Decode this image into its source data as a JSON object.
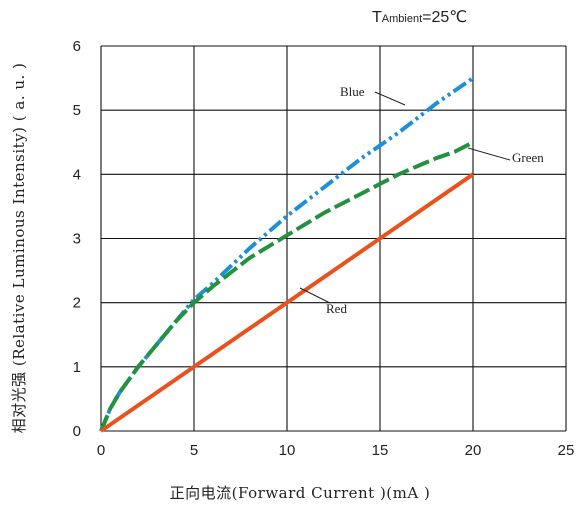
{
  "chart_data": {
    "type": "line",
    "title": "",
    "annotation": {
      "t": "T",
      "sub": "Ambient",
      "rest": "=25℃"
    },
    "xlabel": "正向电流(Forward  Current )(mA )",
    "ylabel": "相对光强 (Relative  Luminous  Intensity) ( a. u. )",
    "xlim": [
      0,
      25
    ],
    "ylim": [
      0,
      6
    ],
    "xticks": [
      "0",
      "5",
      "10",
      "15",
      "20",
      "25"
    ],
    "yticks": [
      "0",
      "1",
      "2",
      "3",
      "4",
      "5",
      "6"
    ],
    "grid": true,
    "series": [
      {
        "name": "Blue",
        "color": "#1e8fd8",
        "dash": "dashdotdot",
        "x": [
          0,
          0.5,
          1,
          2,
          3,
          4,
          5,
          6,
          8,
          10,
          12,
          14,
          16,
          18,
          20
        ],
        "y": [
          0,
          0.35,
          0.6,
          1.0,
          1.35,
          1.7,
          2.05,
          2.3,
          2.85,
          3.35,
          3.8,
          4.25,
          4.65,
          5.1,
          5.5
        ]
      },
      {
        "name": "Green",
        "color": "#23913f",
        "dash": "dash",
        "x": [
          0,
          0.5,
          1,
          2,
          3,
          4,
          5,
          6,
          8,
          10,
          12,
          14,
          16,
          18,
          19,
          20
        ],
        "y": [
          0,
          0.35,
          0.6,
          1.0,
          1.35,
          1.7,
          2.0,
          2.25,
          2.7,
          3.05,
          3.4,
          3.7,
          4.0,
          4.25,
          4.35,
          4.5
        ]
      },
      {
        "name": "Red",
        "color": "#e8531d",
        "dash": "solid",
        "x": [
          0,
          20
        ],
        "y": [
          0,
          4
        ]
      }
    ]
  }
}
